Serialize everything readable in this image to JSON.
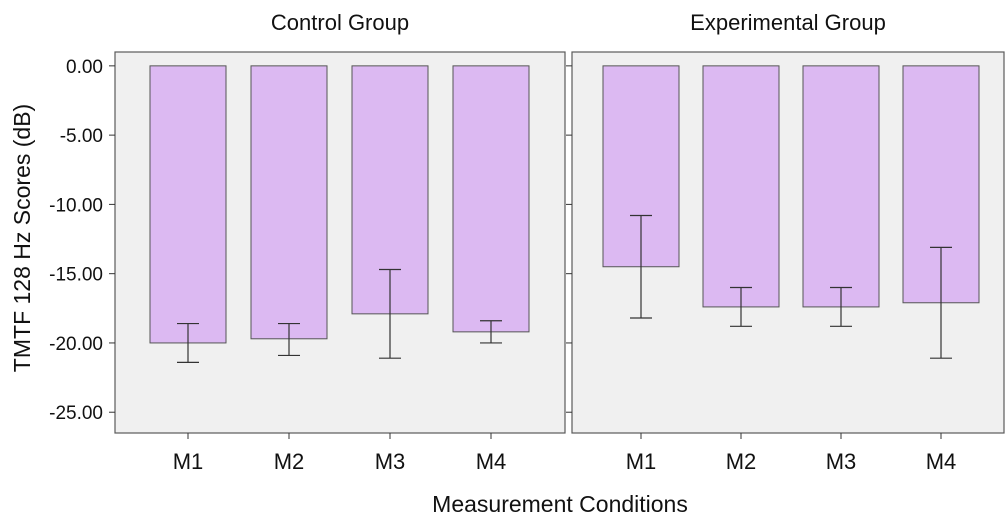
{
  "chart_data": {
    "type": "bar",
    "title": "",
    "xlabel": "Measurement Conditions",
    "ylabel": "TMTF 128 Hz Scores (dB)",
    "ylim": [
      -26.5,
      1.0
    ],
    "yticks": [
      0,
      -5,
      -10,
      -15,
      -20,
      -25
    ],
    "ytick_labels": [
      "0.00",
      "-5.00",
      "-10.00",
      "-15.00",
      "-20.00",
      "-25.00"
    ],
    "bar_color": "#dcb9f2",
    "panels": [
      {
        "title": "Control Group",
        "categories": [
          "M1",
          "M2",
          "M3",
          "M4"
        ],
        "values": [
          -20.0,
          -19.7,
          -17.9,
          -19.2
        ],
        "error_upper": [
          -18.6,
          -18.6,
          -14.7,
          -18.4
        ],
        "error_lower": [
          -21.4,
          -20.9,
          -21.1,
          -20.0
        ]
      },
      {
        "title": "Experimental Group",
        "categories": [
          "M1",
          "M2",
          "M3",
          "M4"
        ],
        "values": [
          -14.5,
          -17.4,
          -17.4,
          -17.1
        ],
        "error_upper": [
          -10.8,
          -16.0,
          -16.0,
          -13.1
        ],
        "error_lower": [
          -18.2,
          -18.8,
          -18.8,
          -21.1
        ]
      }
    ]
  }
}
